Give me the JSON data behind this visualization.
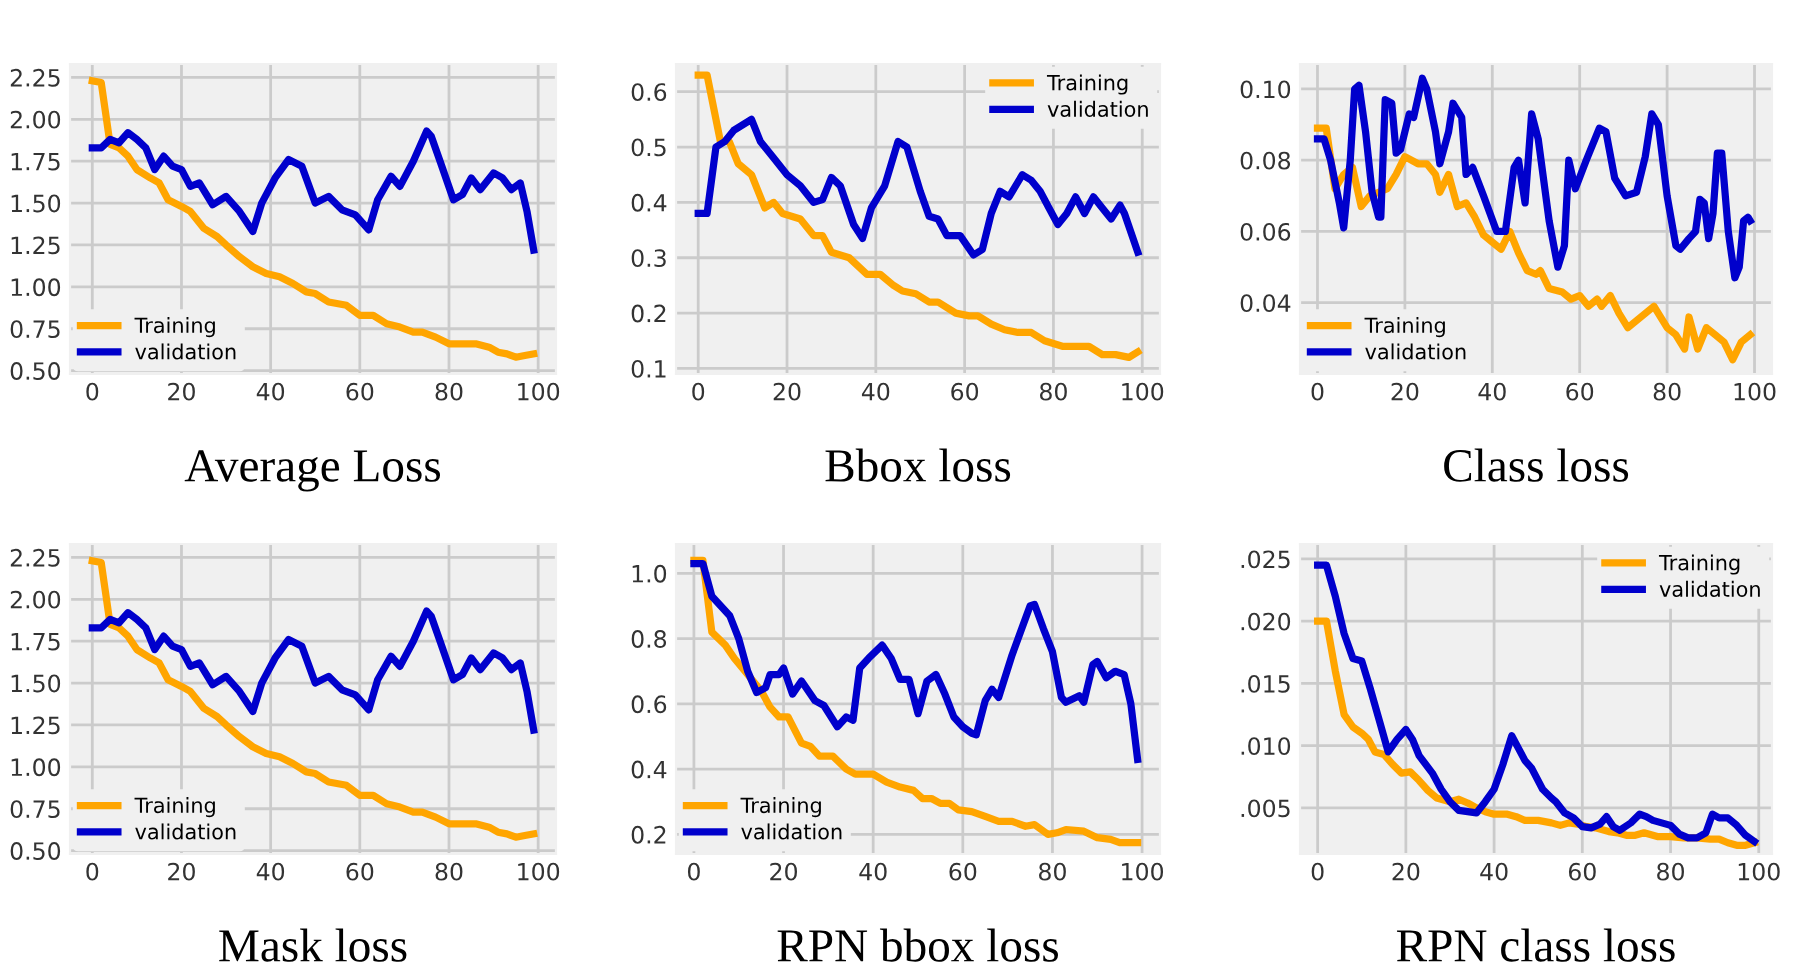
{
  "chart_data": [
    {
      "type": "line",
      "title": "Average Loss",
      "xlim": [
        -5,
        104
      ],
      "ylim": [
        0.48,
        2.33
      ],
      "xticks": [
        0,
        20,
        40,
        60,
        80,
        100
      ],
      "yticks": [
        {
          "value": 0.5,
          "label": "0.50"
        },
        {
          "value": 0.75,
          "label": "0.75"
        },
        {
          "value": 1.0,
          "label": "1.00"
        },
        {
          "value": 1.25,
          "label": "1.25"
        },
        {
          "value": 1.5,
          "label": "1.50"
        },
        {
          "value": 1.75,
          "label": "1.75"
        },
        {
          "value": 2.0,
          "label": "2.00"
        },
        {
          "value": 2.25,
          "label": "2.25"
        }
      ],
      "grid": true,
      "legend": "bottom left",
      "series": [
        {
          "name": "Training",
          "color": "#ffa500",
          "x": [
            0,
            2,
            4,
            6,
            8,
            10,
            13,
            15,
            17,
            20,
            22,
            25,
            28,
            30,
            33,
            36,
            39,
            42,
            45,
            48,
            50,
            53,
            57,
            60,
            63,
            66,
            69,
            72,
            74,
            77,
            80,
            83,
            86,
            89,
            91,
            93,
            95,
            97,
            99
          ],
          "values": [
            2.23,
            2.22,
            1.85,
            1.83,
            1.78,
            1.7,
            1.65,
            1.62,
            1.52,
            1.48,
            1.45,
            1.35,
            1.3,
            1.25,
            1.18,
            1.12,
            1.08,
            1.06,
            1.02,
            0.97,
            0.96,
            0.91,
            0.89,
            0.83,
            0.83,
            0.78,
            0.76,
            0.73,
            0.73,
            0.7,
            0.66,
            0.66,
            0.66,
            0.64,
            0.61,
            0.6,
            0.58,
            0.59,
            0.6
          ]
        },
        {
          "name": "validation",
          "color": "#0000cc",
          "x": [
            0,
            2,
            4,
            6,
            8,
            10,
            12,
            14,
            16,
            18,
            20,
            22,
            24,
            27,
            30,
            33,
            36,
            38,
            41,
            44,
            47,
            50,
            53,
            56,
            59,
            62,
            64,
            67,
            69,
            72,
            75,
            76,
            78,
            81,
            83,
            85,
            87,
            90,
            92,
            94,
            96,
            97.5,
            99
          ],
          "values": [
            1.83,
            1.83,
            1.88,
            1.86,
            1.92,
            1.88,
            1.83,
            1.7,
            1.78,
            1.72,
            1.7,
            1.6,
            1.62,
            1.49,
            1.54,
            1.45,
            1.33,
            1.5,
            1.65,
            1.76,
            1.72,
            1.5,
            1.54,
            1.46,
            1.43,
            1.34,
            1.52,
            1.66,
            1.6,
            1.75,
            1.93,
            1.9,
            1.75,
            1.52,
            1.55,
            1.65,
            1.58,
            1.68,
            1.65,
            1.58,
            1.62,
            1.45,
            1.22
          ]
        }
      ]
    },
    {
      "type": "line",
      "title": "Bbox loss",
      "xlim": [
        -5,
        104
      ],
      "ylim": [
        0.09,
        0.65
      ],
      "xticks": [
        0,
        20,
        40,
        60,
        80,
        100
      ],
      "yticks": [
        0.1,
        0.2,
        0.3,
        0.4,
        0.5,
        0.6
      ],
      "grid": true,
      "legend": "top right",
      "series": [
        {
          "name": "Training",
          "color": "#ffa500",
          "x": [
            0,
            2,
            5,
            7,
            9,
            12,
            15,
            17,
            19,
            23,
            26,
            28,
            30,
            34,
            38,
            41,
            44,
            46,
            49,
            52,
            54,
            58,
            61,
            63,
            66,
            69,
            72,
            75,
            78,
            82,
            85,
            88,
            91,
            94,
            97,
            99
          ],
          "values": [
            0.63,
            0.63,
            0.51,
            0.51,
            0.47,
            0.45,
            0.39,
            0.4,
            0.38,
            0.37,
            0.34,
            0.34,
            0.31,
            0.3,
            0.27,
            0.27,
            0.25,
            0.24,
            0.235,
            0.22,
            0.22,
            0.2,
            0.195,
            0.195,
            0.18,
            0.17,
            0.165,
            0.165,
            0.15,
            0.14,
            0.14,
            0.14,
            0.125,
            0.125,
            0.12,
            0.13
          ]
        },
        {
          "name": "validation",
          "color": "#0000cc",
          "x": [
            0,
            2,
            4,
            6,
            8,
            10,
            12,
            14,
            17,
            20,
            23,
            26,
            28,
            30,
            32,
            35,
            37,
            39,
            42,
            45,
            47,
            50,
            52,
            54,
            56,
            59,
            62,
            64,
            66,
            68,
            70,
            73,
            75,
            77,
            79,
            81,
            83,
            85,
            87,
            89,
            91,
            93,
            95,
            96,
            99
          ],
          "values": [
            0.38,
            0.38,
            0.5,
            0.51,
            0.53,
            0.54,
            0.55,
            0.51,
            0.48,
            0.45,
            0.43,
            0.4,
            0.405,
            0.445,
            0.43,
            0.36,
            0.335,
            0.39,
            0.43,
            0.51,
            0.5,
            0.42,
            0.375,
            0.37,
            0.34,
            0.34,
            0.305,
            0.315,
            0.38,
            0.42,
            0.41,
            0.45,
            0.44,
            0.42,
            0.39,
            0.36,
            0.38,
            0.41,
            0.38,
            0.41,
            0.39,
            0.37,
            0.395,
            0.38,
            0.31
          ]
        }
      ]
    },
    {
      "type": "line",
      "title": "Class loss",
      "xlim": [
        -4,
        104
      ],
      "ylim": [
        0.02,
        0.107
      ],
      "xticks": [
        0,
        20,
        40,
        60,
        80,
        100
      ],
      "yticks": [
        {
          "value": 0.04,
          "label": "0.04"
        },
        {
          "value": 0.06,
          "label": "0.06"
        },
        {
          "value": 0.08,
          "label": "0.08"
        },
        {
          "value": 0.1,
          "label": "0.10"
        }
      ],
      "grid": true,
      "legend": "bottom left",
      "series": [
        {
          "name": "Training",
          "color": "#ffa500",
          "x": [
            0,
            2,
            4,
            6,
            8,
            10,
            12,
            14,
            16,
            18,
            20,
            23,
            25,
            27,
            28,
            30,
            32,
            34,
            36,
            38,
            40,
            42,
            44,
            46,
            48,
            50,
            51,
            53,
            56,
            58,
            60,
            62,
            64,
            65,
            67,
            69,
            71,
            74,
            77,
            80,
            82,
            84,
            85,
            87,
            89,
            91,
            93,
            95,
            97,
            99
          ],
          "values": [
            0.089,
            0.089,
            0.072,
            0.076,
            0.078,
            0.067,
            0.07,
            0.071,
            0.072,
            0.076,
            0.081,
            0.079,
            0.079,
            0.076,
            0.071,
            0.076,
            0.067,
            0.068,
            0.064,
            0.059,
            0.057,
            0.055,
            0.06,
            0.054,
            0.049,
            0.048,
            0.049,
            0.044,
            0.043,
            0.041,
            0.042,
            0.039,
            0.041,
            0.039,
            0.042,
            0.037,
            0.033,
            0.036,
            0.039,
            0.033,
            0.031,
            0.027,
            0.036,
            0.027,
            0.033,
            0.031,
            0.029,
            0.024,
            0.029,
            0.031
          ]
        },
        {
          "name": "validation",
          "color": "#0000cc",
          "x": [
            0,
            1.5,
            3,
            5,
            6,
            7.5,
            8.5,
            9.5,
            11,
            12.5,
            14,
            14.5,
            15.5,
            17,
            18,
            19,
            21,
            22,
            24,
            25,
            27,
            28,
            30,
            31,
            33,
            34,
            35.5,
            38,
            41,
            43,
            45,
            46,
            47.5,
            49,
            50.5,
            53,
            55,
            56.5,
            57.5,
            59,
            61.5,
            64.5,
            66,
            68,
            70.5,
            73,
            75,
            76.5,
            78,
            80,
            82,
            83,
            85,
            86.5,
            87.5,
            88.5,
            89.5,
            90.5,
            91.5,
            92.5,
            94,
            95.5,
            96.5,
            97.5,
            98.5,
            99
          ],
          "values": [
            0.086,
            0.086,
            0.08,
            0.068,
            0.061,
            0.08,
            0.1,
            0.101,
            0.088,
            0.071,
            0.064,
            0.064,
            0.097,
            0.096,
            0.082,
            0.083,
            0.093,
            0.092,
            0.103,
            0.1,
            0.088,
            0.079,
            0.088,
            0.096,
            0.092,
            0.076,
            0.078,
            0.07,
            0.06,
            0.06,
            0.078,
            0.08,
            0.068,
            0.093,
            0.086,
            0.063,
            0.05,
            0.056,
            0.08,
            0.072,
            0.08,
            0.089,
            0.088,
            0.075,
            0.07,
            0.071,
            0.081,
            0.093,
            0.09,
            0.07,
            0.056,
            0.055,
            0.058,
            0.06,
            0.069,
            0.068,
            0.058,
            0.065,
            0.082,
            0.082,
            0.06,
            0.047,
            0.05,
            0.063,
            0.064,
            0.063
          ]
        }
      ]
    },
    {
      "type": "line",
      "title": "Mask loss",
      "xlim": [
        -5,
        104
      ],
      "ylim": [
        0.48,
        2.33
      ],
      "xticks": [
        0,
        20,
        40,
        60,
        80,
        100
      ],
      "yticks": [
        {
          "value": 0.5,
          "label": "0.50"
        },
        {
          "value": 0.75,
          "label": "0.75"
        },
        {
          "value": 1.0,
          "label": "1.00"
        },
        {
          "value": 1.25,
          "label": "1.25"
        },
        {
          "value": 1.5,
          "label": "1.50"
        },
        {
          "value": 1.75,
          "label": "1.75"
        },
        {
          "value": 2.0,
          "label": "2.00"
        },
        {
          "value": 2.25,
          "label": "2.25"
        }
      ],
      "grid": true,
      "legend": "bottom left",
      "series": [
        {
          "name": "Training",
          "color": "#ffa500",
          "x": [
            0,
            2,
            4,
            6,
            8,
            10,
            13,
            15,
            17,
            20,
            22,
            25,
            28,
            30,
            33,
            36,
            39,
            42,
            45,
            48,
            50,
            53,
            57,
            60,
            63,
            66,
            69,
            72,
            74,
            77,
            80,
            83,
            86,
            89,
            91,
            93,
            95,
            97,
            99
          ],
          "values": [
            2.23,
            2.22,
            1.85,
            1.83,
            1.78,
            1.7,
            1.65,
            1.62,
            1.52,
            1.48,
            1.45,
            1.35,
            1.3,
            1.25,
            1.18,
            1.12,
            1.08,
            1.06,
            1.02,
            0.97,
            0.96,
            0.91,
            0.89,
            0.83,
            0.83,
            0.78,
            0.76,
            0.73,
            0.73,
            0.7,
            0.66,
            0.66,
            0.66,
            0.64,
            0.61,
            0.6,
            0.58,
            0.59,
            0.6
          ]
        },
        {
          "name": "validation",
          "color": "#0000cc",
          "x": [
            0,
            2,
            4,
            6,
            8,
            10,
            12,
            14,
            16,
            18,
            20,
            22,
            24,
            27,
            30,
            33,
            36,
            38,
            41,
            44,
            47,
            50,
            53,
            56,
            59,
            62,
            64,
            67,
            69,
            72,
            75,
            76,
            78,
            81,
            83,
            85,
            87,
            90,
            92,
            94,
            96,
            97.5,
            99
          ],
          "values": [
            1.83,
            1.83,
            1.88,
            1.86,
            1.92,
            1.88,
            1.83,
            1.7,
            1.78,
            1.72,
            1.7,
            1.6,
            1.62,
            1.49,
            1.54,
            1.45,
            1.33,
            1.5,
            1.65,
            1.76,
            1.72,
            1.5,
            1.54,
            1.46,
            1.43,
            1.34,
            1.52,
            1.66,
            1.6,
            1.75,
            1.93,
            1.9,
            1.75,
            1.52,
            1.55,
            1.65,
            1.58,
            1.68,
            1.65,
            1.58,
            1.62,
            1.45,
            1.22
          ]
        }
      ]
    },
    {
      "type": "line",
      "title": "RPN bbox loss",
      "xlim": [
        -4,
        104
      ],
      "ylim": [
        0.14,
        1.09
      ],
      "xticks": [
        0,
        20,
        40,
        60,
        80,
        100
      ],
      "yticks": [
        0.2,
        0.4,
        0.6,
        0.8,
        {
          "value": 1.0,
          "label": "1.0"
        }
      ],
      "grid": true,
      "legend": "bottom left",
      "series": [
        {
          "name": "Training",
          "color": "#ffa500",
          "x": [
            0,
            2,
            4,
            7,
            9,
            12,
            15,
            17,
            19,
            21,
            24,
            26,
            28,
            31,
            34,
            36,
            40,
            43,
            46,
            49,
            51,
            53,
            55,
            57,
            59,
            62,
            65,
            68,
            71,
            74,
            76,
            79,
            81,
            83,
            87,
            90,
            93,
            95,
            97,
            99
          ],
          "values": [
            1.04,
            1.04,
            0.82,
            0.78,
            0.74,
            0.69,
            0.64,
            0.59,
            0.56,
            0.56,
            0.48,
            0.47,
            0.44,
            0.44,
            0.4,
            0.385,
            0.385,
            0.36,
            0.345,
            0.335,
            0.31,
            0.31,
            0.295,
            0.295,
            0.275,
            0.27,
            0.255,
            0.24,
            0.24,
            0.225,
            0.23,
            0.2,
            0.205,
            0.215,
            0.21,
            0.19,
            0.185,
            0.175,
            0.175,
            0.175
          ]
        },
        {
          "name": "validation",
          "color": "#0000cc",
          "x": [
            0,
            2,
            4,
            6,
            8,
            10,
            12,
            14,
            16,
            17,
            19,
            20,
            22,
            24,
            27,
            29,
            32,
            34,
            35.5,
            37,
            39,
            42,
            44,
            46,
            48,
            50,
            52,
            54,
            56,
            58,
            60,
            62,
            63,
            65,
            66.5,
            68,
            71,
            75,
            76,
            78,
            80,
            82,
            83,
            86,
            87,
            89,
            90,
            92,
            94,
            96,
            97.5,
            99
          ],
          "values": [
            1.03,
            1.03,
            0.93,
            0.9,
            0.87,
            0.8,
            0.7,
            0.635,
            0.65,
            0.69,
            0.69,
            0.71,
            0.63,
            0.67,
            0.61,
            0.595,
            0.53,
            0.56,
            0.55,
            0.71,
            0.74,
            0.78,
            0.74,
            0.675,
            0.675,
            0.57,
            0.67,
            0.69,
            0.63,
            0.56,
            0.53,
            0.51,
            0.505,
            0.61,
            0.645,
            0.62,
            0.75,
            0.9,
            0.905,
            0.83,
            0.76,
            0.62,
            0.605,
            0.625,
            0.605,
            0.72,
            0.73,
            0.68,
            0.7,
            0.69,
            0.6,
            0.43
          ]
        }
      ]
    },
    {
      "type": "line",
      "title": "RPN class loss",
      "xlim": [
        -4,
        103
      ],
      "ylim": [
        0.0013,
        0.0262
      ],
      "xticks": [
        0,
        20,
        40,
        60,
        80,
        100
      ],
      "yticks": [
        {
          "value": 0.005,
          "label": ".005"
        },
        {
          "value": 0.01,
          "label": ".010"
        },
        {
          "value": 0.015,
          "label": ".015"
        },
        {
          "value": 0.02,
          "label": ".020"
        },
        {
          "value": 0.025,
          "label": ".025"
        }
      ],
      "grid": true,
      "legend": "top right",
      "series": [
        {
          "name": "Training",
          "color": "#ffa500",
          "x": [
            0,
            2,
            4,
            6,
            8,
            10,
            11.5,
            13,
            15,
            17,
            19,
            21,
            23,
            25,
            27,
            30,
            32,
            34,
            36,
            38,
            40,
            43,
            45,
            47,
            50,
            53,
            55,
            57,
            59,
            61,
            63,
            66,
            68,
            70,
            72,
            74,
            77,
            80,
            83,
            86,
            89,
            91,
            93,
            95,
            97,
            99
          ],
          "values": [
            0.02,
            0.02,
            0.016,
            0.0125,
            0.0115,
            0.011,
            0.0105,
            0.0095,
            0.0093,
            0.0085,
            0.0078,
            0.0079,
            0.0072,
            0.0064,
            0.0058,
            0.0055,
            0.0057,
            0.0054,
            0.005,
            0.0047,
            0.0045,
            0.0045,
            0.0043,
            0.004,
            0.004,
            0.0038,
            0.0036,
            0.0038,
            0.0037,
            0.0035,
            0.0034,
            0.0031,
            0.003,
            0.0028,
            0.0028,
            0.003,
            0.0027,
            0.0027,
            0.0026,
            0.0026,
            0.0025,
            0.0025,
            0.0022,
            0.002,
            0.002,
            0.0022
          ]
        },
        {
          "name": "validation",
          "color": "#0000cc",
          "x": [
            0,
            2,
            4,
            6,
            8,
            10,
            12,
            14,
            16,
            18,
            20,
            21.5,
            23,
            26,
            28,
            30,
            32,
            34,
            36,
            38,
            40,
            42,
            44,
            45.5,
            47,
            48.5,
            51,
            53,
            54,
            56,
            58,
            60,
            62,
            64,
            65.5,
            67,
            68.5,
            71,
            73,
            74.5,
            76,
            78,
            80,
            82,
            84,
            86,
            88,
            89.5,
            91,
            93,
            95,
            97,
            99
          ],
          "values": [
            0.0245,
            0.0245,
            0.022,
            0.019,
            0.017,
            0.0168,
            0.0145,
            0.012,
            0.0095,
            0.0105,
            0.0113,
            0.0105,
            0.0092,
            0.0078,
            0.0065,
            0.0055,
            0.0048,
            0.0047,
            0.0046,
            0.0055,
            0.0065,
            0.0085,
            0.0108,
            0.0098,
            0.0088,
            0.0082,
            0.0065,
            0.0058,
            0.0055,
            0.0046,
            0.0042,
            0.0035,
            0.0034,
            0.0037,
            0.0043,
            0.0035,
            0.0032,
            0.0038,
            0.0045,
            0.0043,
            0.004,
            0.0038,
            0.0036,
            0.0029,
            0.0026,
            0.0026,
            0.003,
            0.0045,
            0.0042,
            0.0042,
            0.0036,
            0.0028,
            0.0023
          ]
        }
      ]
    }
  ]
}
